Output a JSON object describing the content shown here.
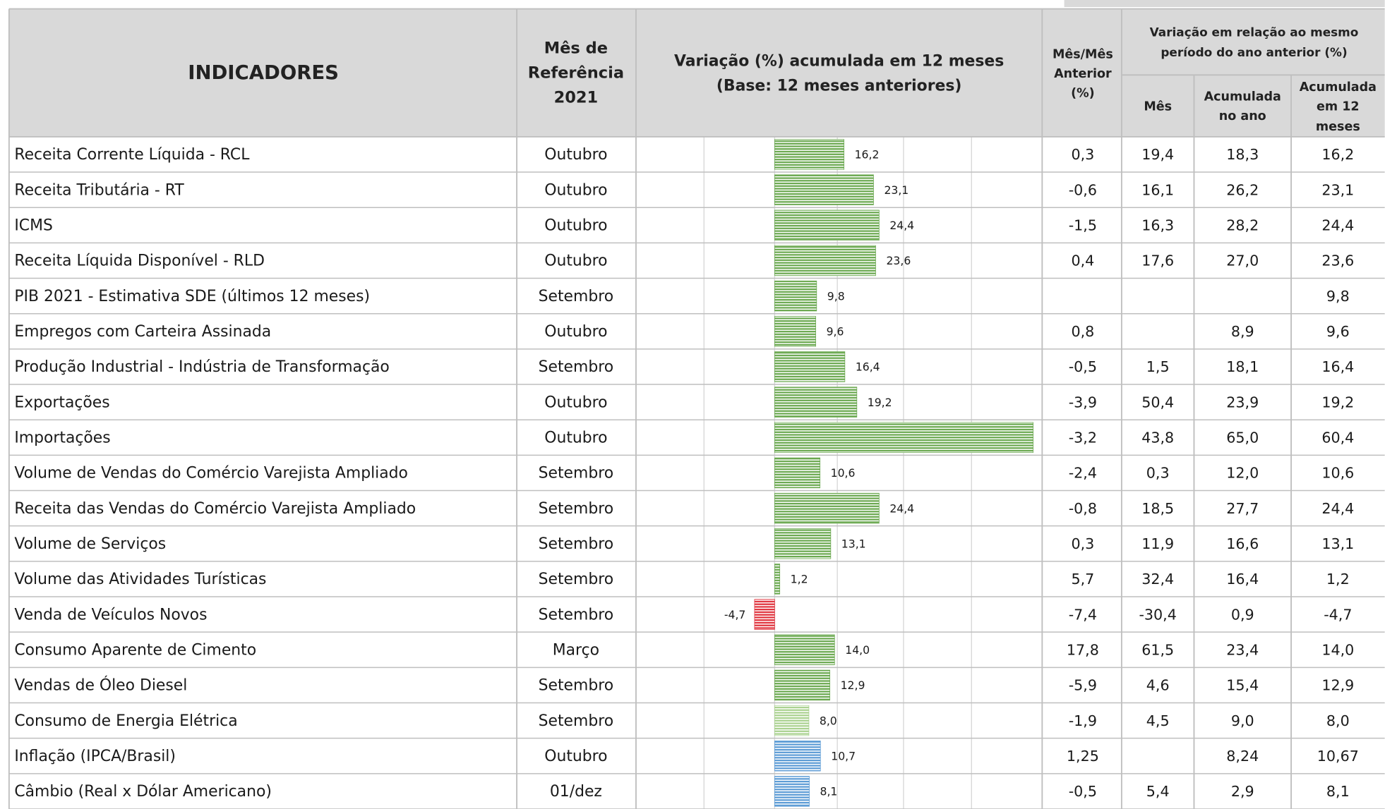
{
  "header": {
    "indicators": "INDICADORES",
    "month": [
      "Mês de",
      "Referência",
      "2021"
    ],
    "chart": [
      "Variação (%) acumulada em 12 meses",
      "(Base: 12 meses anteriores)"
    ],
    "mom": [
      "Mês/Mês",
      "Anterior",
      "(%)"
    ],
    "yoy": [
      "Variação em relação ao mesmo",
      "período do ano anterior (%)"
    ],
    "yoy_month": [
      "Mês"
    ],
    "yoy_ytd": [
      "Acumulada",
      "no ano"
    ],
    "yoy_12m": [
      "Acumulada",
      "em 12",
      "meses"
    ]
  },
  "bar_xlim": [
    -32.4,
    62.5
  ],
  "rows": [
    {
      "indicator": "Receita Corrente Líquida - RCL",
      "month": "Outubro",
      "bar": {
        "value": 16.2,
        "label": "16,2",
        "color": "#6aa84f"
      },
      "mom": "0,3",
      "yoy_month": "19,4",
      "yoy_ytd": "18,3",
      "yoy_12m": "16,2"
    },
    {
      "indicator": "Receita Tributária - RT",
      "month": "Outubro",
      "bar": {
        "value": 23.1,
        "label": "23,1",
        "color": "#6aa84f"
      },
      "mom": "-0,6",
      "yoy_month": "16,1",
      "yoy_ytd": "26,2",
      "yoy_12m": "23,1"
    },
    {
      "indicator": "ICMS",
      "month": "Outubro",
      "bar": {
        "value": 24.4,
        "label": "24,4",
        "color": "#6aa84f"
      },
      "mom": "-1,5",
      "yoy_month": "16,3",
      "yoy_ytd": "28,2",
      "yoy_12m": "24,4"
    },
    {
      "indicator": "Receita Líquida Disponível - RLD",
      "month": "Outubro",
      "bar": {
        "value": 23.6,
        "label": "23,6",
        "color": "#6aa84f"
      },
      "mom": "0,4",
      "yoy_month": "17,6",
      "yoy_ytd": "27,0",
      "yoy_12m": "23,6"
    },
    {
      "indicator": "PIB  2021 - Estimativa SDE (últimos 12 meses)",
      "month": "Setembro",
      "bar": {
        "value": 9.8,
        "label": "9,8",
        "color": "#6aa84f"
      },
      "mom": null,
      "yoy_month": null,
      "yoy_ytd": null,
      "yoy_12m": "9,8"
    },
    {
      "indicator": "Empregos com Carteira Assinada",
      "month": "Outubro",
      "bar": {
        "value": 9.6,
        "label": "9,6",
        "color": "#6aa84f"
      },
      "mom": "0,8",
      "yoy_month": null,
      "yoy_ytd": "8,9",
      "yoy_12m": "9,6"
    },
    {
      "indicator": "Produção Industrial - Indústria de Transformação",
      "month": "Setembro",
      "bar": {
        "value": 16.4,
        "label": "16,4",
        "color": "#6aa84f"
      },
      "mom": "-0,5",
      "yoy_month": "1,5",
      "yoy_ytd": "18,1",
      "yoy_12m": "16,4"
    },
    {
      "indicator": "Exportações",
      "month": "Outubro",
      "bar": {
        "value": 19.2,
        "label": "19,2",
        "color": "#6aa84f"
      },
      "mom": "-3,9",
      "yoy_month": "50,4",
      "yoy_ytd": "23,9",
      "yoy_12m": "19,2"
    },
    {
      "indicator": "Importações",
      "month": "Outubro",
      "bar": {
        "value": 60.4,
        "color": "#6aa84f"
      },
      "mom": "-3,2",
      "yoy_month": "43,8",
      "yoy_ytd": "65,0",
      "yoy_12m": "60,4"
    },
    {
      "indicator": "Volume de Vendas do Comércio Varejista Ampliado",
      "month": "Setembro",
      "bar": {
        "value": 10.6,
        "label": "10,6",
        "color": "#6aa84f"
      },
      "mom": "-2,4",
      "yoy_month": "0,3",
      "yoy_ytd": "12,0",
      "yoy_12m": "10,6"
    },
    {
      "indicator": "Receita das Vendas do Comércio Varejista Ampliado",
      "month": "Setembro",
      "bar": {
        "value": 24.4,
        "label": "24,4",
        "color": "#6aa84f"
      },
      "mom": "-0,8",
      "yoy_month": "18,5",
      "yoy_ytd": "27,7",
      "yoy_12m": "24,4"
    },
    {
      "indicator": "Volume de Serviços",
      "month": "Setembro",
      "bar": {
        "value": 13.1,
        "label": "13,1",
        "color": "#6aa84f"
      },
      "mom": "0,3",
      "yoy_month": "11,9",
      "yoy_ytd": "16,6",
      "yoy_12m": "13,1"
    },
    {
      "indicator": "Volume das Atividades Turísticas",
      "month": "Setembro",
      "bar": {
        "value": 1.2,
        "label": "1,2",
        "color": "#6aa84f"
      },
      "mom": "5,7",
      "yoy_month": "32,4",
      "yoy_ytd": "16,4",
      "yoy_12m": "1,2"
    },
    {
      "indicator": "Venda de Veículos Novos",
      "month": "Setembro",
      "bar": {
        "value": -4.7,
        "label": "-4,7",
        "color": "#e0323c"
      },
      "mom": "-7,4",
      "yoy_month": "-30,4",
      "yoy_ytd": "0,9",
      "yoy_12m": "-4,7"
    },
    {
      "indicator": "Consumo Aparente de Cimento",
      "month": "Março",
      "bar": {
        "value": 14.0,
        "label": "14,0",
        "color": "#6aa84f"
      },
      "mom": "17,8",
      "yoy_month": "61,5",
      "yoy_ytd": "23,4",
      "yoy_12m": "14,0"
    },
    {
      "indicator": "Vendas de Óleo Diesel",
      "month": "Setembro",
      "bar": {
        "value": 12.9,
        "label": "12,9",
        "color": "#6aa84f"
      },
      "mom": "-5,9",
      "yoy_month": "4,6",
      "yoy_ytd": "15,4",
      "yoy_12m": "12,9"
    },
    {
      "indicator": "Consumo  de Energia Elétrica",
      "month": "Setembro",
      "bar": {
        "value": 8.0,
        "label": "8,0",
        "color": "#a9d18e"
      },
      "mom": "-1,9",
      "yoy_month": "4,5",
      "yoy_ytd": "9,0",
      "yoy_12m": "8,0"
    },
    {
      "indicator": "Inflação (IPCA/Brasil)",
      "month": "Outubro",
      "bar": {
        "value": 10.7,
        "label": "10,7",
        "color": "#5b9bd5"
      },
      "mom": "1,25",
      "yoy_month": null,
      "yoy_ytd": "8,24",
      "yoy_12m": "10,67"
    },
    {
      "indicator": "Câmbio (Real x Dólar Americano)",
      "month": "01/dez",
      "bar": {
        "value": 8.1,
        "label": "8,1",
        "color": "#5b9bd5"
      },
      "mom": "-0,5",
      "yoy_month": "5,4",
      "yoy_ytd": "2,9",
      "yoy_12m": "8,1"
    }
  ]
}
